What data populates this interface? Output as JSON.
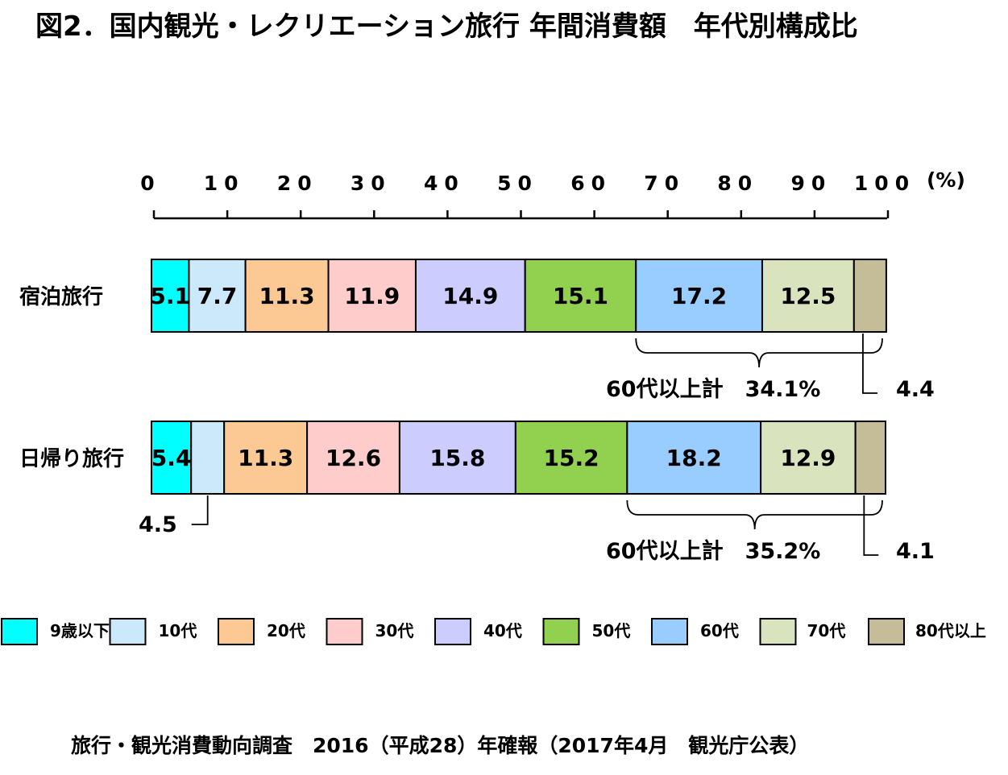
{
  "chart_data": {
    "type": "bar",
    "orientation": "horizontal",
    "stacked": true,
    "title": "図2．国内観光・レクリエーション旅行 年間消費額　年代別構成比",
    "x_ticks": [
      "0",
      "10",
      "20",
      "30",
      "40",
      "50",
      "60",
      "70",
      "80",
      "90",
      "100"
    ],
    "x_unit": "(%)",
    "xlim": [
      0,
      100
    ],
    "legend_position": "bottom",
    "categories": [
      "宿泊旅行",
      "日帰り旅行"
    ],
    "series": [
      {
        "name": "9歳以下",
        "color": "#00ffff",
        "values": [
          5.1,
          5.4
        ]
      },
      {
        "name": "10代",
        "color": "#cce9fb",
        "values": [
          7.7,
          4.5
        ]
      },
      {
        "name": "20代",
        "color": "#fcc894",
        "values": [
          11.3,
          11.3
        ]
      },
      {
        "name": "30代",
        "color": "#ffcccc",
        "values": [
          11.9,
          12.6
        ]
      },
      {
        "name": "40代",
        "color": "#ccccff",
        "values": [
          14.9,
          15.8
        ]
      },
      {
        "name": "50代",
        "color": "#92d050",
        "values": [
          15.1,
          15.2
        ]
      },
      {
        "name": "60代",
        "color": "#99ccff",
        "values": [
          17.2,
          18.2
        ]
      },
      {
        "name": "70代",
        "color": "#d9e4bf",
        "values": [
          12.5,
          12.9
        ]
      },
      {
        "name": "80代以上",
        "color": "#c4bd97",
        "values": [
          4.4,
          4.1
        ]
      }
    ],
    "annotations": [
      {
        "bar": 0,
        "text": "60代以上計　34.1%",
        "external_value": "4.4"
      },
      {
        "bar": 1,
        "text": "60代以上計　35.2%",
        "external_value": "4.1",
        "external_low": "4.5"
      }
    ],
    "source": "旅行・観光消費動向調査　2016（平成28）年確報（2017年4月　観光庁公表）"
  }
}
